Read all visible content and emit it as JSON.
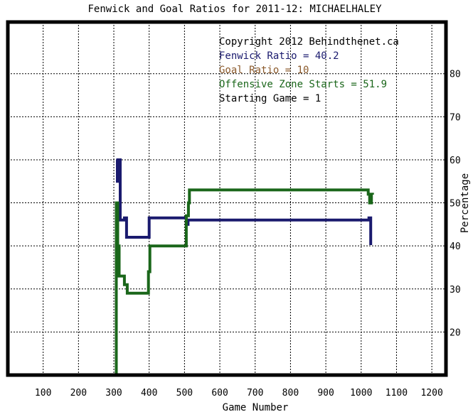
{
  "chart_data": {
    "type": "line",
    "title": "Fenwick and Goal Ratios for 2011-12: MICHAELHALEY",
    "xlabel": "Game Number",
    "ylabel": "Percentage",
    "xlim": [
      0,
      1240
    ],
    "ylim": [
      10,
      92
    ],
    "xticks": [
      "100",
      "200",
      "300",
      "400",
      "500",
      "600",
      "700",
      "800",
      "900",
      "1000",
      "1100",
      "1200"
    ],
    "yticks": [
      "20",
      "30",
      "40",
      "50",
      "60",
      "70",
      "80"
    ],
    "grid": true,
    "y_axis_side": "right",
    "annotations": [
      {
        "text": "Copyright 2012 Behindthenet.ca",
        "color": "#000000"
      },
      {
        "text": "Fenwick Ratio = 40.2",
        "color": "#1a1a6e"
      },
      {
        "text": "Goal Ratio = 10",
        "color": "#8b5a2b"
      },
      {
        "text": "Offensive Zone Starts = 51.9",
        "color": "#1a661a"
      },
      {
        "text": "Starting Game = 1",
        "color": "#000000"
      }
    ],
    "series": [
      {
        "name": "Fenwick Ratio",
        "color": "#1a1a6e",
        "points": [
          [
            307,
            60
          ],
          [
            310,
            60
          ],
          [
            310,
            55
          ],
          [
            313,
            55
          ],
          [
            313,
            60
          ],
          [
            318,
            60
          ],
          [
            318,
            46
          ],
          [
            330,
            46
          ],
          [
            330,
            46.5
          ],
          [
            336,
            46.5
          ],
          [
            336,
            42
          ],
          [
            400,
            42
          ],
          [
            400,
            46.5
          ],
          [
            505,
            46.5
          ],
          [
            505,
            45
          ],
          [
            510,
            45
          ],
          [
            510,
            46
          ],
          [
            1022,
            46
          ],
          [
            1022,
            46.5
          ],
          [
            1027,
            46.5
          ],
          [
            1027,
            40.2
          ]
        ]
      },
      {
        "name": "Offensive Zone Starts",
        "color": "#1a661a",
        "points": [
          [
            307,
            10
          ],
          [
            307,
            50
          ],
          [
            311,
            50
          ],
          [
            311,
            40
          ],
          [
            315,
            40
          ],
          [
            315,
            33
          ],
          [
            330,
            33
          ],
          [
            330,
            31
          ],
          [
            338,
            31
          ],
          [
            338,
            29
          ],
          [
            398,
            29
          ],
          [
            398,
            34
          ],
          [
            402,
            34
          ],
          [
            402,
            40
          ],
          [
            505,
            40
          ],
          [
            505,
            47
          ],
          [
            511,
            47
          ],
          [
            511,
            50
          ],
          [
            514,
            50
          ],
          [
            514,
            53
          ],
          [
            1020,
            53
          ],
          [
            1020,
            52
          ],
          [
            1024,
            52
          ],
          [
            1024,
            50
          ],
          [
            1029,
            50
          ],
          [
            1029,
            52
          ],
          [
            1032,
            52
          ],
          [
            1032,
            51.9
          ]
        ]
      }
    ]
  }
}
